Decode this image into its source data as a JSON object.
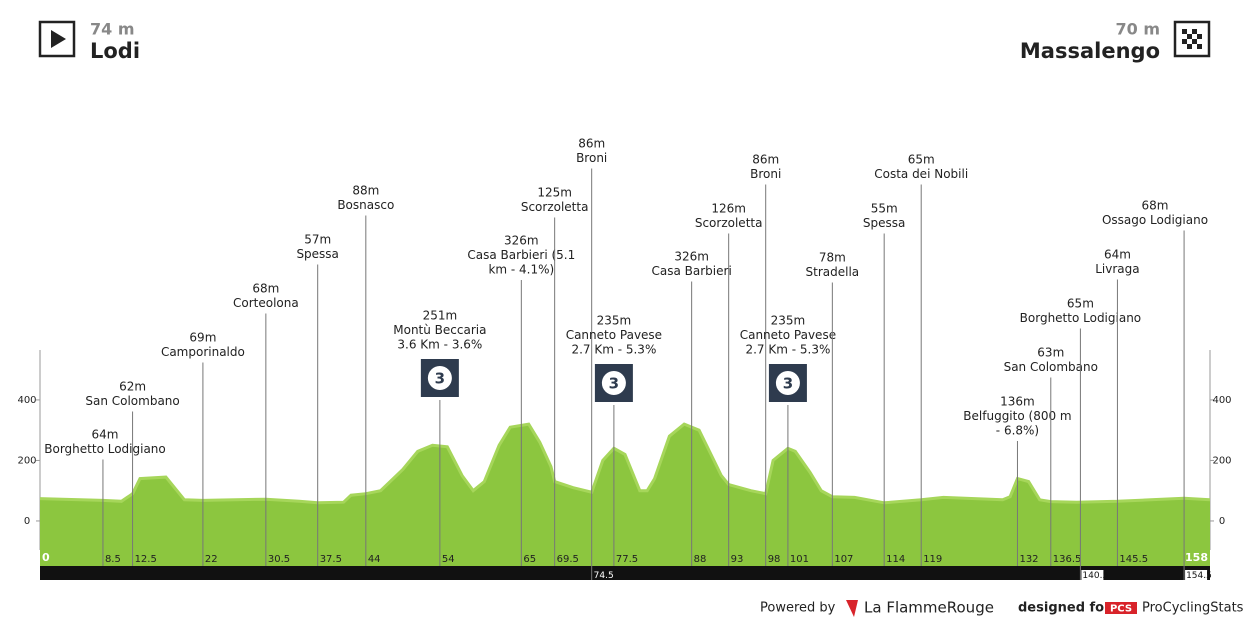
{
  "start": {
    "altitude": "74 m",
    "name": "Lodi"
  },
  "finish": {
    "altitude": "70 m",
    "name": "Massalengo"
  },
  "chart_data": {
    "type": "profile",
    "color": "#8cc63f",
    "x": [
      0,
      8.5,
      11,
      12.5,
      13.5,
      17,
      18.5,
      19.5,
      22,
      30.5,
      35,
      37.5,
      41,
      42,
      44,
      46,
      49,
      51,
      53,
      55,
      57,
      58.5,
      60,
      62,
      63.5,
      66,
      67.5,
      69,
      69.5,
      72,
      74.5,
      76,
      77.5,
      79,
      81,
      82,
      83,
      85,
      87,
      89,
      91,
      92,
      93,
      96,
      98,
      99,
      101,
      102,
      104,
      105.5,
      107,
      110,
      114,
      119,
      122,
      130,
      131,
      132,
      133.5,
      135,
      136.5,
      140,
      145.5,
      150,
      154.5,
      158
    ],
    "values": [
      74,
      68,
      65,
      90,
      140,
      145,
      100,
      70,
      68,
      72,
      65,
      60,
      62,
      85,
      90,
      100,
      170,
      230,
      250,
      245,
      150,
      100,
      130,
      250,
      310,
      320,
      260,
      180,
      130,
      110,
      95,
      200,
      240,
      220,
      100,
      100,
      140,
      280,
      320,
      300,
      200,
      150,
      120,
      100,
      90,
      200,
      240,
      230,
      160,
      100,
      80,
      78,
      60,
      70,
      78,
      70,
      80,
      140,
      130,
      70,
      64,
      62,
      65,
      70,
      75,
      70
    ],
    "xlim": [
      0,
      158
    ],
    "ylim": [
      -96,
      565
    ],
    "yticks": [
      0,
      200,
      400
    ],
    "waypoints": [
      {
        "km": 8.5,
        "label": [
          "64m",
          "Borghetto Lodigiano"
        ]
      },
      {
        "km": 12.5,
        "label": [
          "62m",
          "San Colombano"
        ]
      },
      {
        "km": 22,
        "label": [
          "69m",
          "Camporinaldo"
        ]
      },
      {
        "km": 30.5,
        "label": [
          "68m",
          "Corteolona"
        ]
      },
      {
        "km": 37.5,
        "label": [
          "57m",
          "Spessa"
        ]
      },
      {
        "km": 44,
        "label": [
          "88m",
          "Bosnasco"
        ]
      },
      {
        "km": 54,
        "label": [
          "251m",
          "Montù Beccaria",
          "3.6 Km - 3.6%"
        ],
        "category": 3
      },
      {
        "km": 65,
        "label": [
          "326m",
          "Casa Barbieri (5.1",
          "km - 4.1%)"
        ]
      },
      {
        "km": 69.5,
        "label": [
          "125m",
          "Scorzoletta"
        ]
      },
      {
        "km": 74.5,
        "label": [
          "86m",
          "Broni"
        ]
      },
      {
        "km": 77.5,
        "label": [
          "235m",
          "Canneto Pavese",
          "2.7 Km - 5.3%"
        ],
        "category": 3
      },
      {
        "km": 88,
        "label": [
          "326m",
          "Casa Barbieri"
        ]
      },
      {
        "km": 93,
        "label": [
          "126m",
          "Scorzoletta"
        ]
      },
      {
        "km": 98,
        "label": [
          "86m",
          "Broni"
        ]
      },
      {
        "km": 101,
        "label": [
          "235m",
          "Canneto Pavese",
          "2.7 Km - 5.3%"
        ],
        "category": 3
      },
      {
        "km": 107,
        "label": [
          "78m",
          "Stradella"
        ]
      },
      {
        "km": 114,
        "label": [
          "55m",
          "Spessa"
        ]
      },
      {
        "km": 119,
        "label": [
          "65m",
          "Costa dei Nobili"
        ]
      },
      {
        "km": 132,
        "label": [
          "136m",
          "Belfuggito (800 m",
          "- 6.8%)"
        ]
      },
      {
        "km": 136.5,
        "label": [
          "63m",
          "San Colombano"
        ]
      },
      {
        "km": 140.5,
        "label": [
          "65m",
          "Borghetto Lodigiano"
        ]
      },
      {
        "km": 145.5,
        "label": [
          "64m",
          "Livraga"
        ]
      },
      {
        "km": 154.5,
        "label": [
          "68m",
          "Ossago Lodigiano"
        ]
      }
    ]
  },
  "footer": {
    "powered": "Powered by",
    "brand": "La FlammeRouge",
    "designed": "designed for",
    "pcs": "PCS",
    "site": "ProCyclingStats"
  }
}
